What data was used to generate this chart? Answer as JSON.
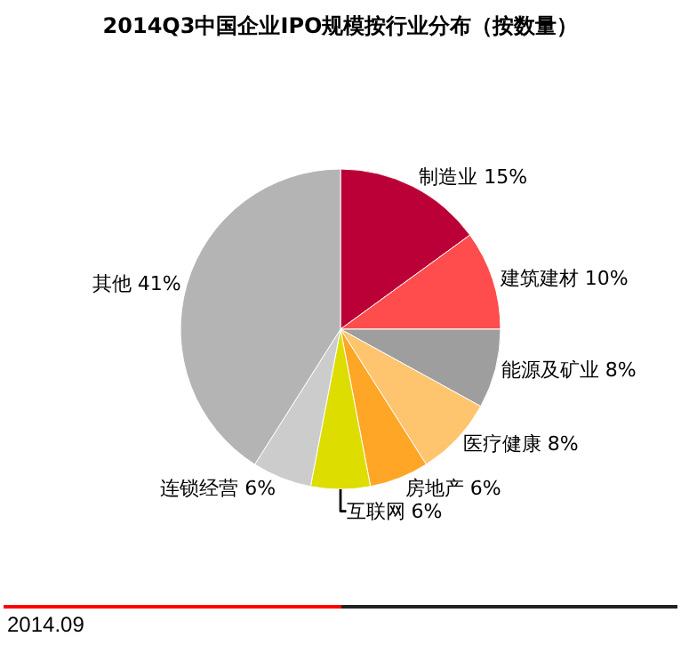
{
  "chart_data": {
    "type": "pie",
    "title": "2014Q3中国企业IPO规模按行业分布（按数量）",
    "categories": [
      "制造业",
      "建筑建材",
      "能源及矿业",
      "医疗健康",
      "房地产",
      "互联网",
      "连锁经营",
      "其他"
    ],
    "values": [
      15,
      10,
      8,
      8,
      6,
      6,
      6,
      41
    ],
    "value_labels": [
      "15%",
      "10%",
      "8%",
      "8%",
      "6%",
      "6%",
      "6%",
      "41%"
    ],
    "colors": [
      "#bb0038",
      "#ff4c4c",
      "#9e9e9e",
      "#ffc46e",
      "#ffa626",
      "#dddd00",
      "#cccccc",
      "#b4b4b4"
    ],
    "annotations": [
      "2014.09"
    ],
    "legend": false
  }
}
